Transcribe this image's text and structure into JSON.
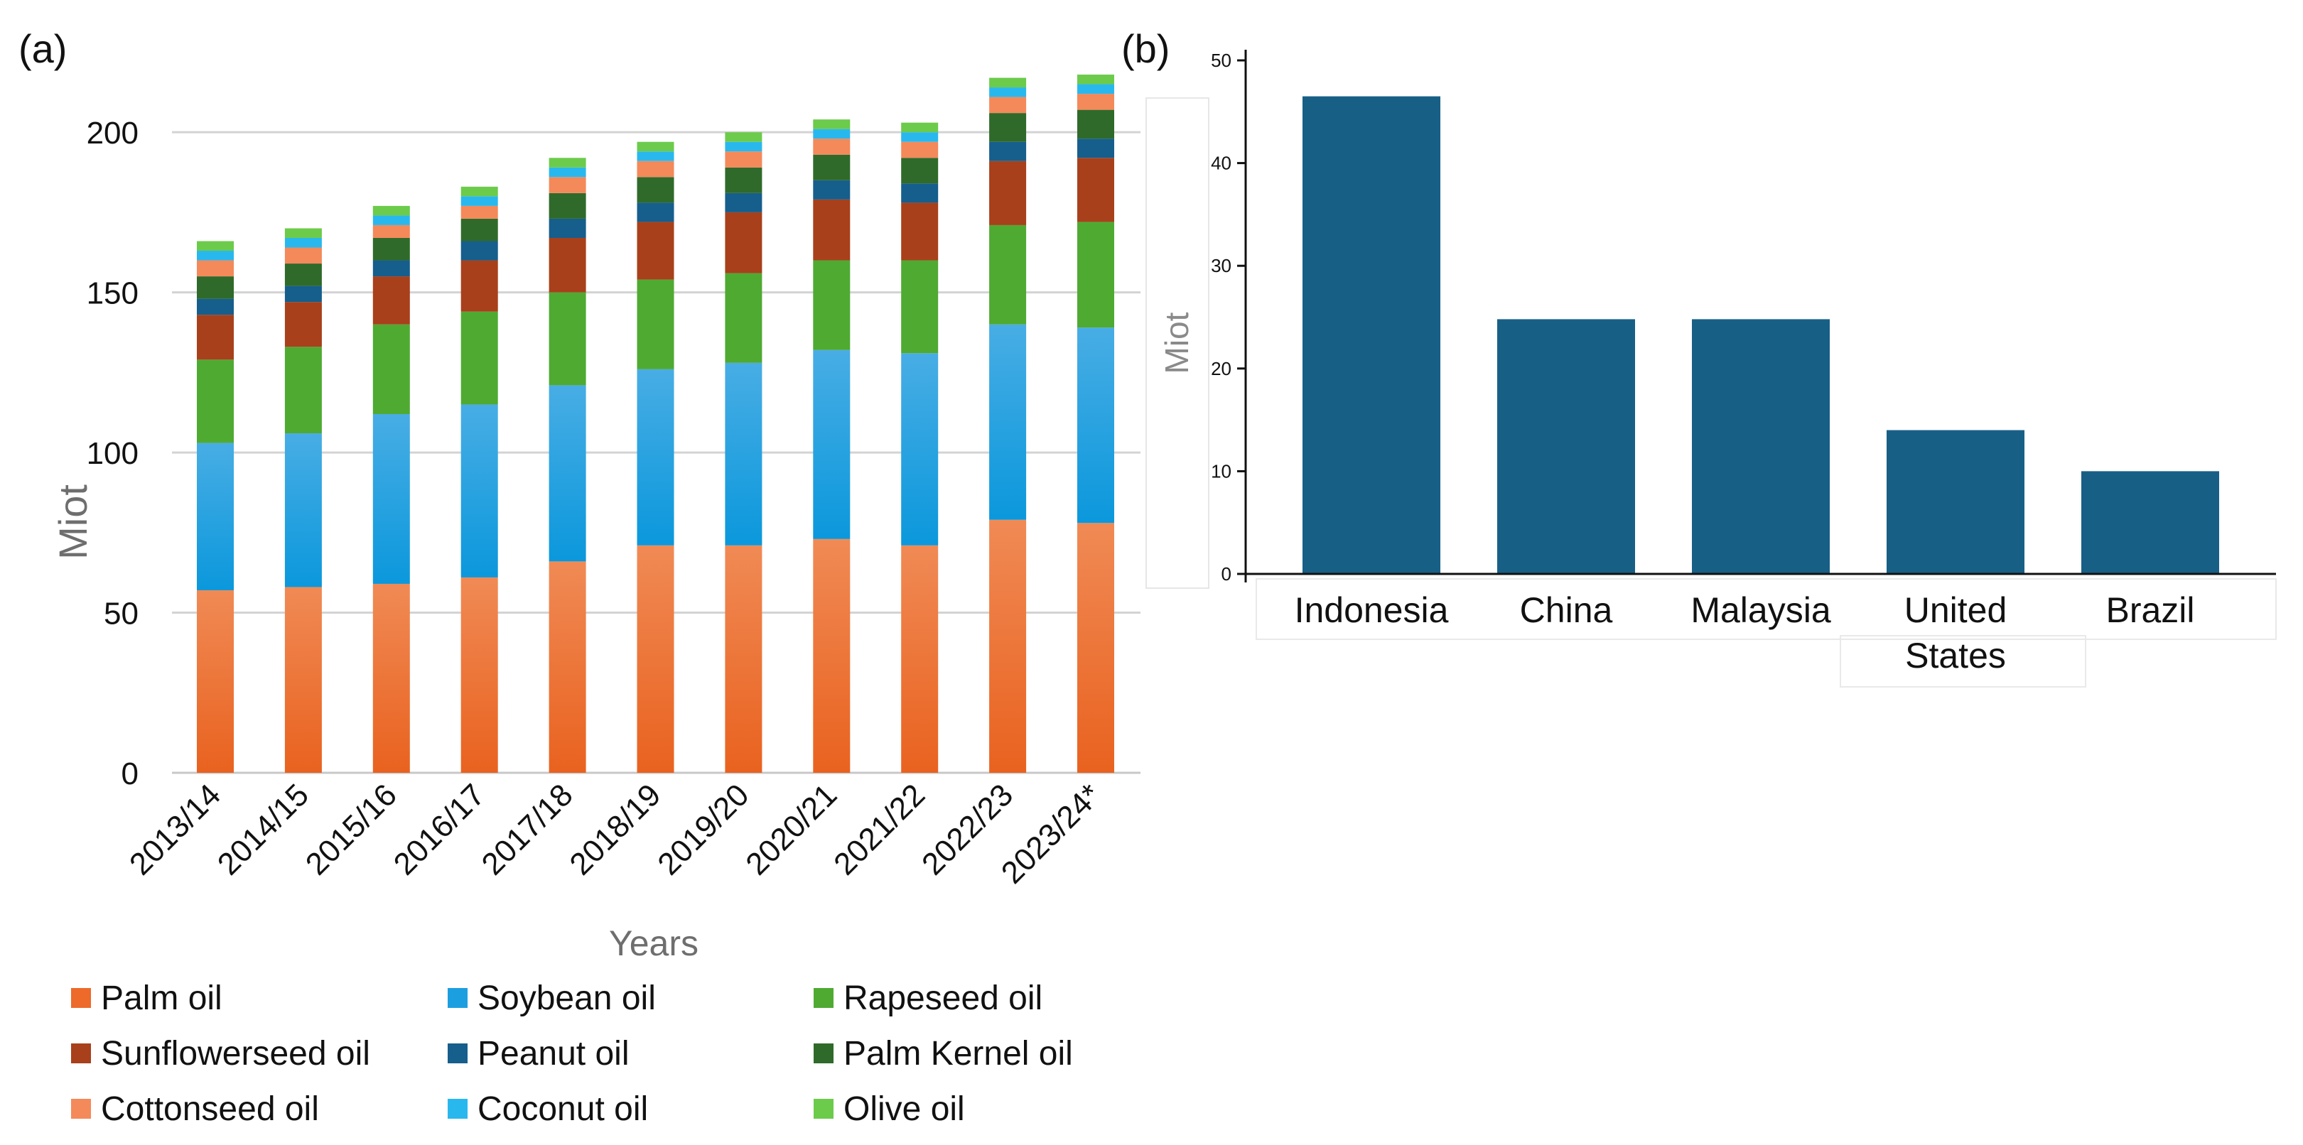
{
  "chart_data": [
    {
      "panel_label": "(a)",
      "type": "bar",
      "stacked": true,
      "title": "",
      "xlabel": "Years",
      "ylabel": "Miot",
      "ylim": [
        0,
        220
      ],
      "yticks": [
        0,
        50,
        100,
        150,
        200
      ],
      "grid": true,
      "legend_position": "bottom",
      "categories": [
        "2013/14",
        "2014/15",
        "2015/16",
        "2016/17",
        "2017/18",
        "2018/19",
        "2019/20",
        "2020/21",
        "2021/22",
        "2022/23",
        "2023/24*"
      ],
      "series": [
        {
          "name": "Palm oil",
          "color": "#ED6A2A",
          "values": [
            57,
            58,
            59,
            61,
            66,
            71,
            71,
            73,
            71,
            79,
            78
          ]
        },
        {
          "name": "Soybean oil",
          "color": "#1C9FE0",
          "values": [
            46,
            48,
            53,
            54,
            55,
            55,
            57,
            59,
            60,
            61,
            61
          ]
        },
        {
          "name": "Rapeseed oil",
          "color": "#4FAA32",
          "values": [
            26,
            27,
            28,
            29,
            29,
            28,
            28,
            28,
            29,
            31,
            33
          ]
        },
        {
          "name": "Sunflowerseed oil",
          "color": "#A8401B",
          "values": [
            14,
            14,
            15,
            16,
            17,
            18,
            19,
            19,
            18,
            20,
            20
          ]
        },
        {
          "name": "Peanut oil",
          "color": "#165E8C",
          "values": [
            5,
            5,
            5,
            6,
            6,
            6,
            6,
            6,
            6,
            6,
            6
          ]
        },
        {
          "name": "Palm Kernel oil",
          "color": "#2F6A2A",
          "values": [
            7,
            7,
            7,
            7,
            8,
            8,
            8,
            8,
            8,
            9,
            9
          ]
        },
        {
          "name": "Cottonseed oil",
          "color": "#F4895A",
          "values": [
            5,
            5,
            4,
            4,
            5,
            5,
            5,
            5,
            5,
            5,
            5
          ]
        },
        {
          "name": "Coconut oil",
          "color": "#29B8EE",
          "values": [
            3,
            3,
            3,
            3,
            3,
            3,
            3,
            3,
            3,
            3,
            3
          ]
        },
        {
          "name": "Olive oil",
          "color": "#6CCB4B",
          "values": [
            3,
            3,
            3,
            3,
            3,
            3,
            3,
            3,
            3,
            3,
            3
          ]
        }
      ]
    },
    {
      "panel_label": "(b)",
      "type": "bar",
      "title": "",
      "xlabel": "",
      "ylabel": "Miot",
      "ylim": [
        0,
        50
      ],
      "yticks": [
        0,
        10,
        20,
        30,
        40,
        50
      ],
      "grid": false,
      "color": "#185F86",
      "categories": [
        [
          "Indonesia"
        ],
        [
          "China"
        ],
        [
          "Malaysia"
        ],
        [
          "United",
          "States"
        ],
        [
          "Brazil"
        ]
      ],
      "values": [
        46.5,
        24.8,
        24.8,
        14,
        10
      ]
    }
  ]
}
